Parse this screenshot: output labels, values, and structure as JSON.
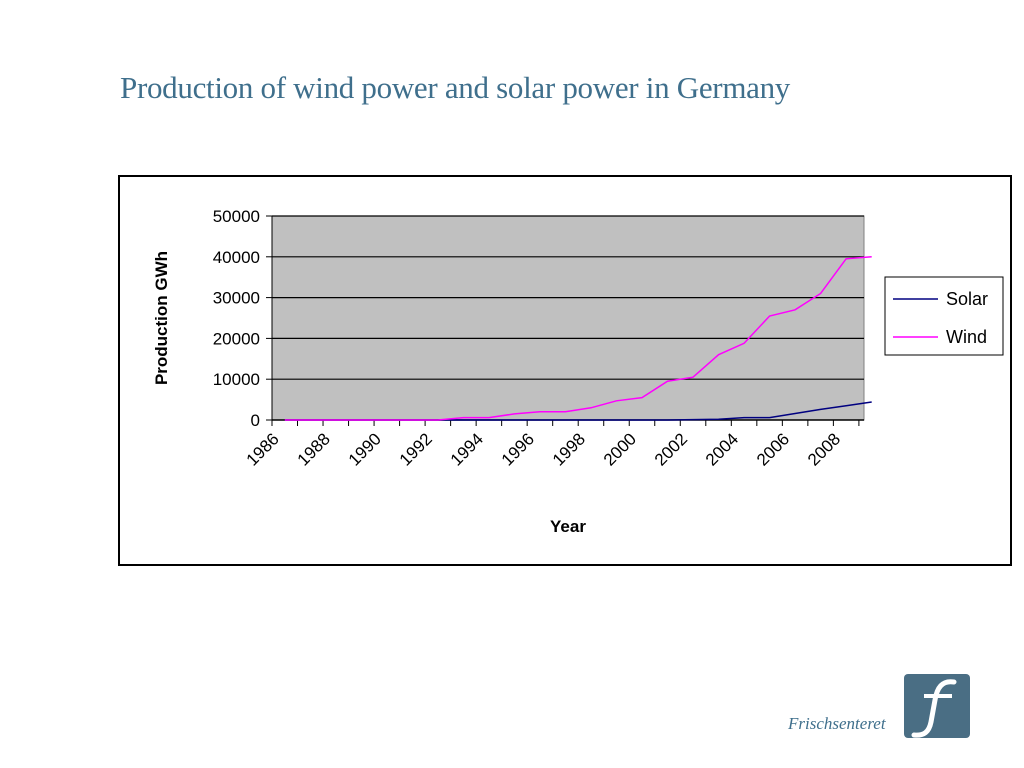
{
  "slide": {
    "title": "Production of wind power and solar power in Germany"
  },
  "brand": {
    "name": "Frischsenteret"
  },
  "colors": {
    "title": "#3f6f8c",
    "plot_bg": "#c0c0c0",
    "solar": "#000080",
    "wind": "#ff00ff",
    "logo": "#4a6e84"
  },
  "chart_data": {
    "type": "line",
    "xlabel": "Year",
    "ylabel": "Production GWh",
    "ylim": [
      0,
      50000
    ],
    "yticks": [
      0,
      10000,
      20000,
      30000,
      40000,
      50000
    ],
    "xticks": [
      "1986",
      "1988",
      "1990",
      "1992",
      "1994",
      "1996",
      "1998",
      "2000",
      "2002",
      "2004",
      "2006",
      "2008"
    ],
    "x": [
      1986,
      1987,
      1988,
      1989,
      1990,
      1991,
      1992,
      1993,
      1994,
      1995,
      1996,
      1997,
      1998,
      1999,
      2000,
      2001,
      2002,
      2003,
      2004,
      2005,
      2006,
      2007,
      2008,
      2009
    ],
    "grid": "horizontal",
    "legend_position": "right",
    "series": [
      {
        "name": "Solar",
        "values": [
          0,
          0,
          0,
          0,
          0,
          0,
          0,
          0,
          0,
          0,
          0,
          0,
          0,
          0,
          0,
          0,
          100,
          200,
          600,
          600,
          1600,
          2600,
          3500,
          4400
        ]
      },
      {
        "name": "Wind",
        "values": [
          0,
          0,
          0,
          0,
          0,
          0,
          0,
          600,
          600,
          1500,
          2000,
          2000,
          3000,
          4700,
          5500,
          9500,
          10500,
          16000,
          18800,
          25500,
          27000,
          31000,
          39500,
          40000
        ]
      }
    ]
  }
}
